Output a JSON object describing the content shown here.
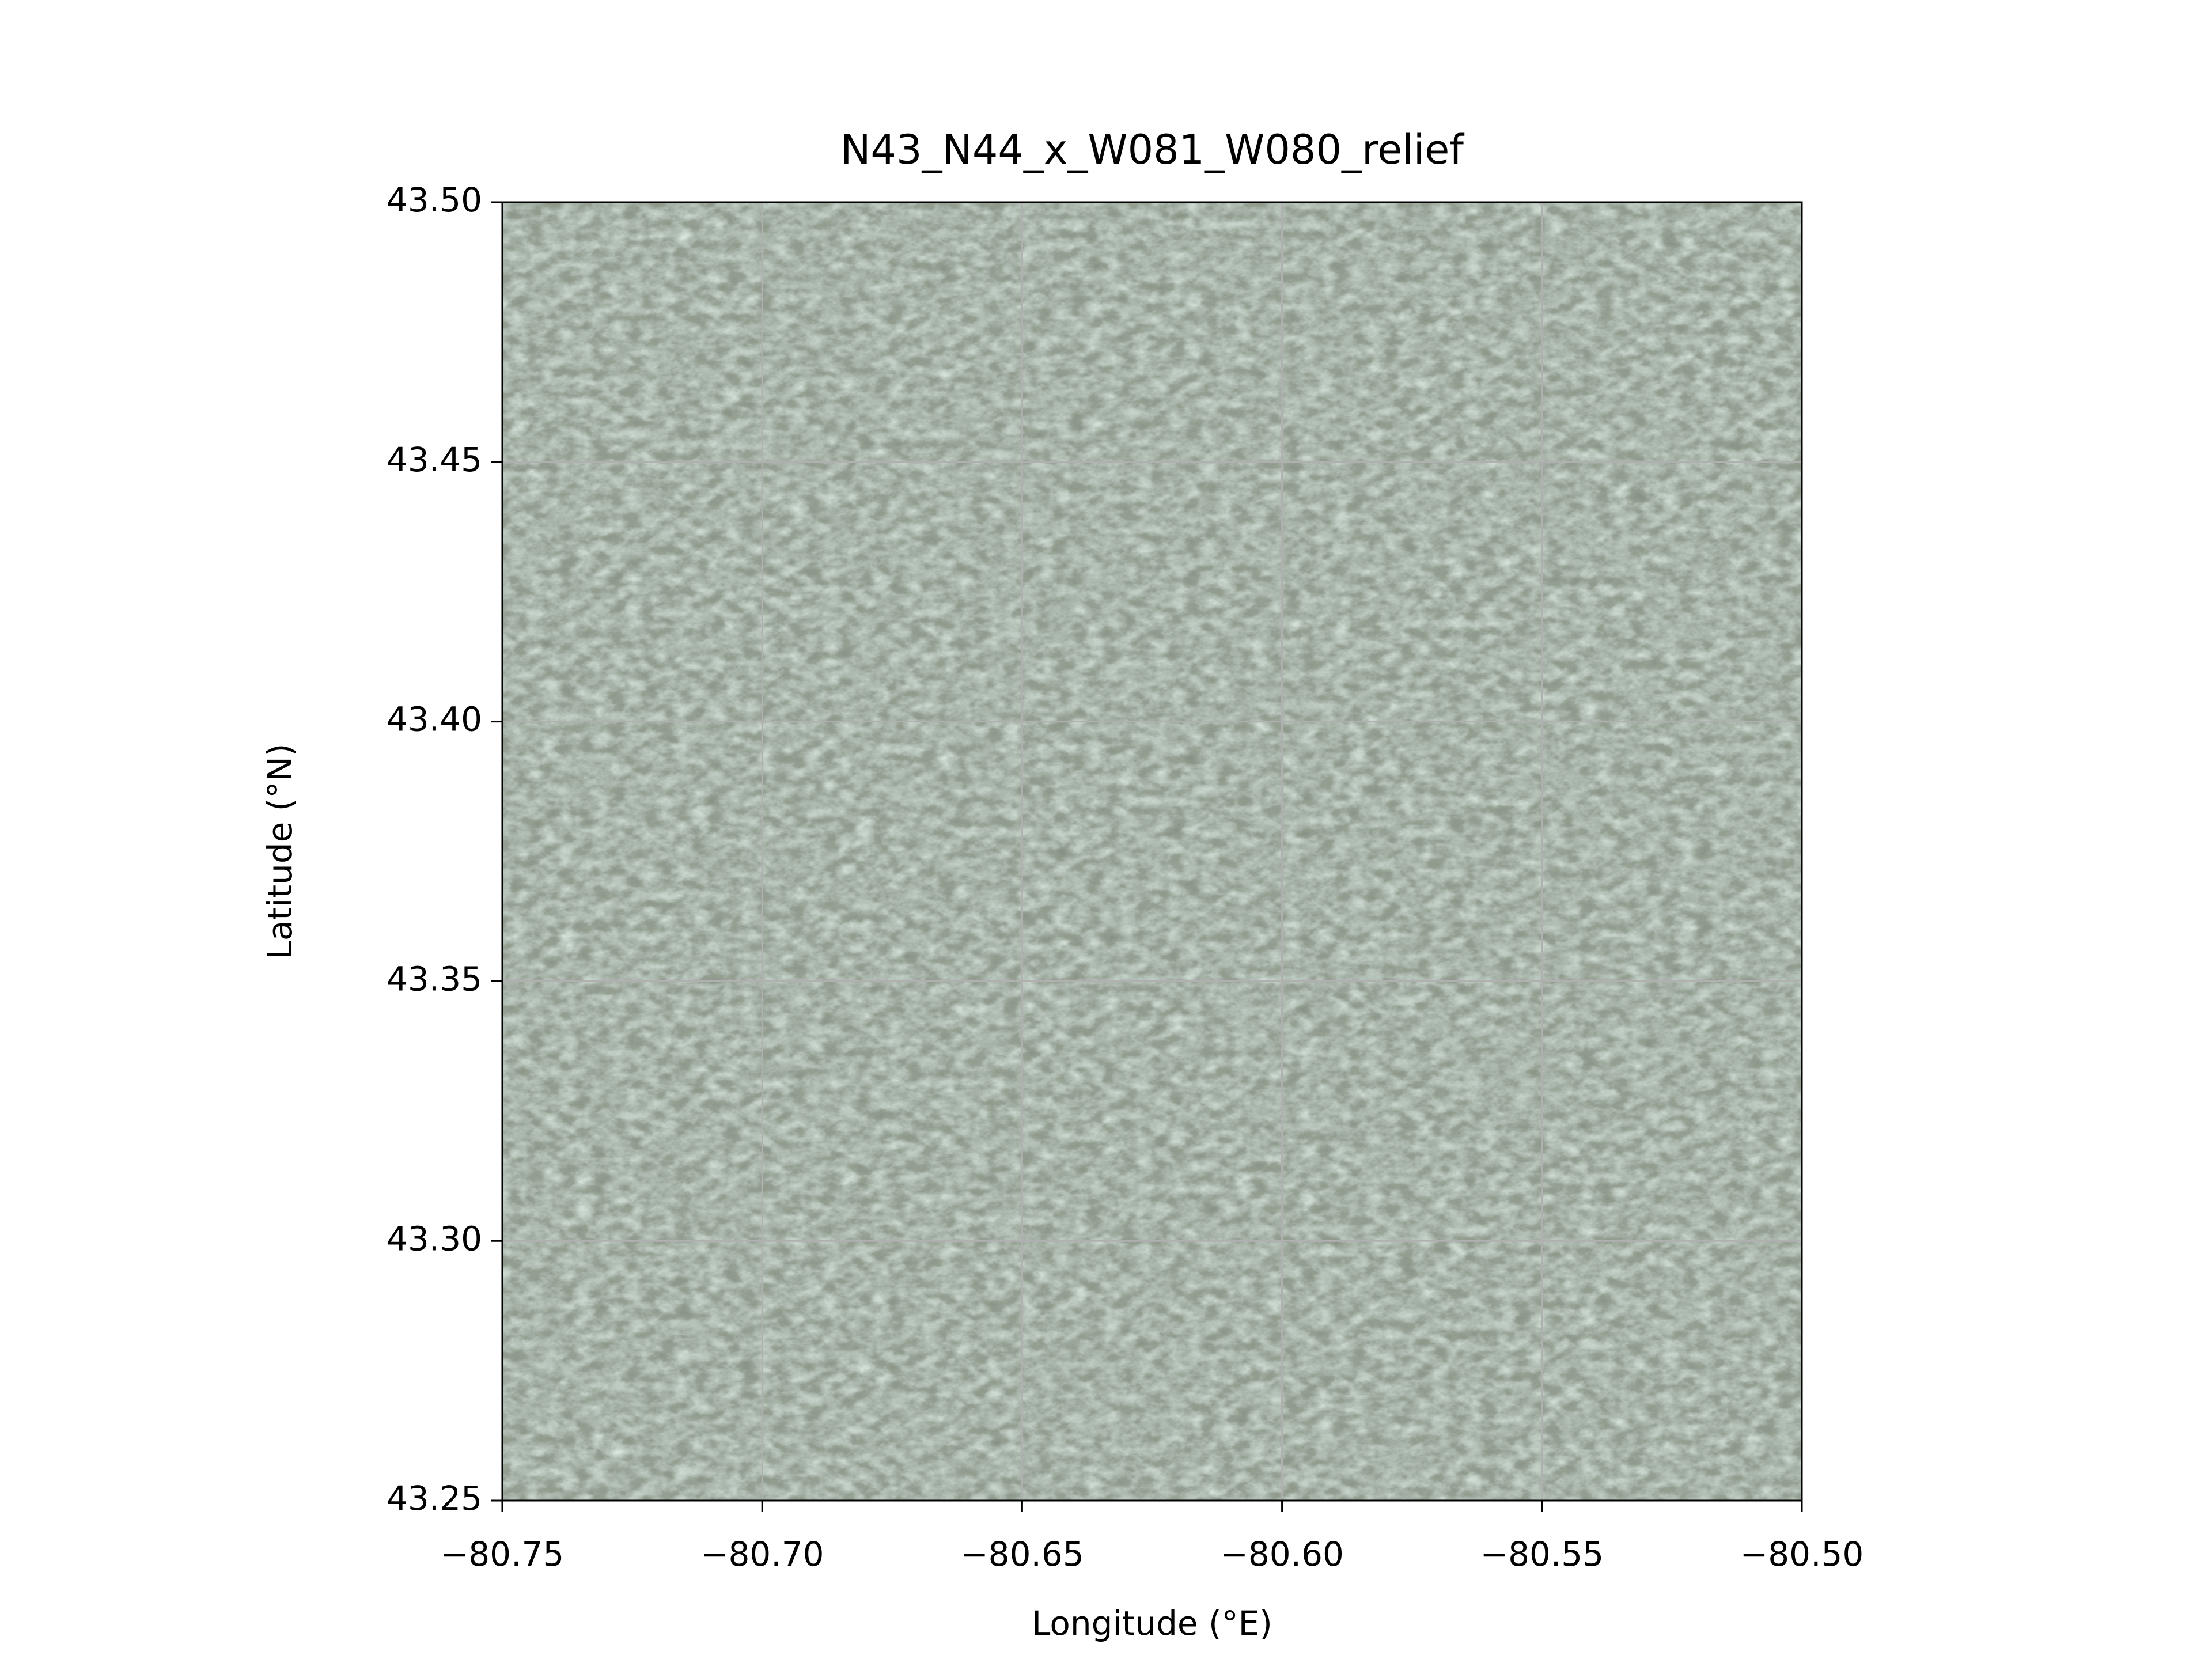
{
  "chart_data": {
    "type": "image",
    "title": "N43_N44_x_W081_W080_relief",
    "xlabel": "Longitude (°E)",
    "ylabel": "Latitude (°N)",
    "xlim": [
      -80.75,
      -80.5
    ],
    "ylim": [
      43.25,
      43.5
    ],
    "xticks": [
      {
        "value": -80.75,
        "label": "−80.75"
      },
      {
        "value": -80.7,
        "label": "−80.70"
      },
      {
        "value": -80.65,
        "label": "−80.65"
      },
      {
        "value": -80.6,
        "label": "−80.60"
      },
      {
        "value": -80.55,
        "label": "−80.55"
      },
      {
        "value": -80.5,
        "label": "−80.50"
      }
    ],
    "yticks": [
      43.25,
      {
        "value": 43.3,
        "label": "43.30"
      },
      43.35,
      {
        "value": 43.4,
        "label": "43.40"
      },
      43.45,
      {
        "value": 43.5,
        "label": "43.50"
      }
    ],
    "grid": true
  }
}
